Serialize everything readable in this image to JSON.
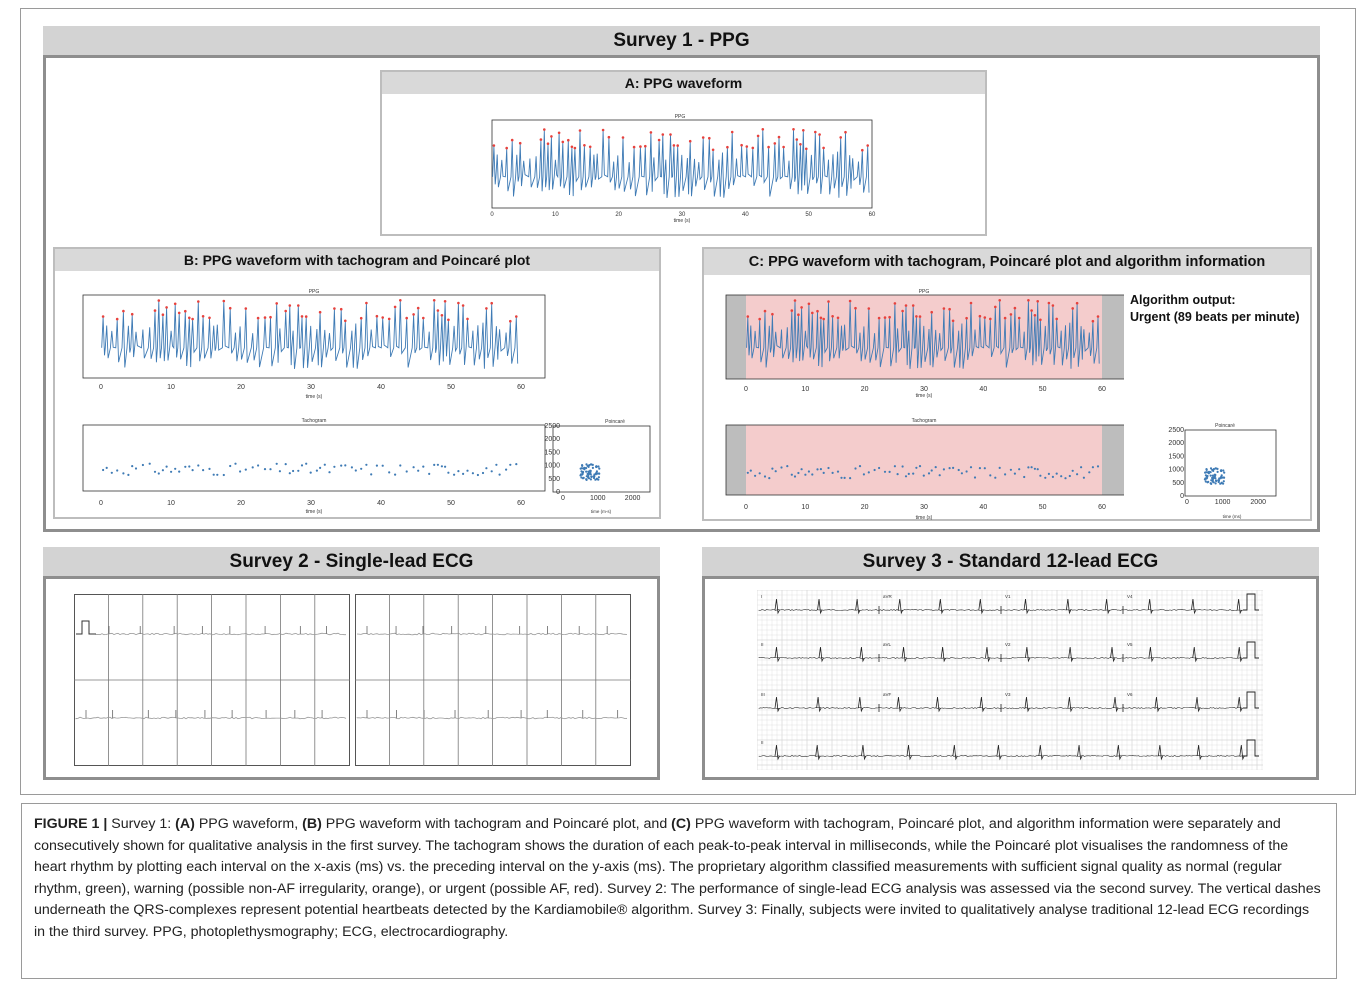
{
  "survey1": {
    "title": "Survey 1 - PPG"
  },
  "panelA": {
    "title": "A: PPG waveform",
    "plot_title": "PPG",
    "xlabel": "time (s)"
  },
  "panelB": {
    "title": "B: PPG waveform with tachogram and Poincaré plot",
    "plot_title": "PPG",
    "xlabel": "time (s)",
    "tacho_title": "Tachogram",
    "tacho_xlabel": "time (s)",
    "poincare_title": "Poincaré",
    "poincare_xlabel": "time (m-s)"
  },
  "panelC": {
    "title": "C: PPG waveform with tachogram, Poincaré plot and algorithm information",
    "plot_title": "PPG",
    "xlabel": "time (s)",
    "tacho_title": "Tachogram",
    "tacho_xlabel": "time (s)",
    "poincare_title": "Poincaré",
    "poincare_xlabel": "time (ms)",
    "algo_label": "Algorithm output:",
    "algo_value": "Urgent (89 beats per minute)"
  },
  "survey2": {
    "title": "Survey 2 - Single-lead ECG"
  },
  "survey3": {
    "title": "Survey 3 - Standard 12-lead ECG",
    "leads": [
      "I",
      "aVR",
      "V1",
      "V4",
      "II",
      "aVL",
      "V2",
      "V5",
      "III",
      "aVF",
      "V3",
      "V6",
      "II"
    ]
  },
  "colors": {
    "waveform": "#3f7bb5",
    "peak": "#e8413c",
    "urgent_fill": "#f4cccc",
    "header_bg": "#d3d3d3"
  },
  "chart_data": [
    {
      "type": "line",
      "name": "PPG waveform",
      "xlim": [
        0,
        60
      ],
      "xticks": [
        0,
        10,
        20,
        30,
        40,
        50,
        60
      ]
    },
    {
      "type": "scatter",
      "name": "Tachogram",
      "xlim": [
        0,
        60
      ],
      "xticks": [
        0,
        10,
        20,
        30,
        40,
        50,
        60
      ]
    },
    {
      "type": "scatter",
      "name": "Poincaré",
      "xlim": [
        0,
        2500
      ],
      "ylim": [
        0,
        2500
      ],
      "xticks": [
        0,
        1000,
        2000
      ],
      "yticks": [
        0,
        500,
        1000,
        1500,
        2000,
        2500
      ]
    }
  ],
  "caption": {
    "label": "FIGURE 1 |",
    "s1": " Survey 1: ",
    "a": "(A)",
    "a_text": " PPG waveform, ",
    "b": "(B)",
    "b_text": " PPG waveform with tachogram and Poincaré plot, and ",
    "c": "(C)",
    "c_text": " PPG waveform with tachogram, Poincaré plot, and algorithm information were separately and consecutively shown for qualitative analysis in the first survey. The tachogram shows the duration of each peak-to-peak interval in milliseconds, while the Poincaré plot visualises the randomness of the heart rhythm by plotting each interval on the x-axis (ms) vs. the preceding interval on the y-axis (ms). The proprietary algorithm classified measurements with sufficient signal quality as normal (regular rhythm, green), warning (possible non-AF irregularity, orange), or urgent (possible AF, red). Survey 2: The performance of single-lead ECG analysis was assessed via the second survey. The vertical dashes underneath the QRS-complexes represent potential heartbeats detected by the Kardiamobile® algorithm. Survey 3: Finally, subjects were invited to qualitatively analyse traditional 12-lead ECG recordings in the third survey. PPG, photoplethysmography; ECG, electrocardiography."
  }
}
